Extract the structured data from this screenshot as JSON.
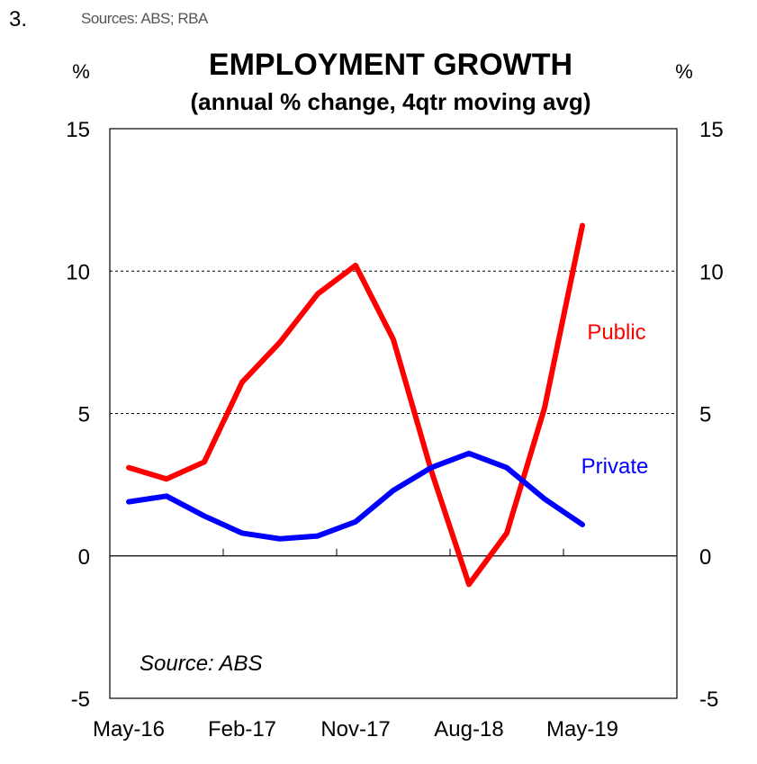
{
  "figure": {
    "number": "3.",
    "sources_note": "Sources:  ABS; RBA"
  },
  "chart_data": {
    "type": "line",
    "title": "EMPLOYMENT GROWTH",
    "subtitle": "(annual % change, 4qtr moving avg)",
    "left_unit": "%",
    "right_unit": "%",
    "ylim": [
      -5,
      15
    ],
    "yticks": [
      -5,
      0,
      5,
      10,
      15
    ],
    "ytick_labels": [
      "-5",
      "0",
      "5",
      "10",
      "15"
    ],
    "gridlines": [
      5,
      10
    ],
    "x": [
      "May-16",
      "Aug-16",
      "Nov-16",
      "Feb-17",
      "May-17",
      "Aug-17",
      "Nov-17",
      "Feb-18",
      "May-18",
      "Aug-18",
      "Nov-18",
      "Feb-19",
      "May-19"
    ],
    "x_tick_labels": [
      "May-16",
      "Feb-17",
      "Nov-17",
      "Aug-18",
      "May-19"
    ],
    "series": [
      {
        "name": "Public",
        "color": "#ff0000",
        "values": [
          3.1,
          2.7,
          3.3,
          6.1,
          7.5,
          9.2,
          10.2,
          7.6,
          3.0,
          -1.0,
          0.8,
          5.2,
          11.6
        ]
      },
      {
        "name": "Private",
        "color": "#0000ff",
        "values": [
          1.9,
          2.1,
          1.4,
          0.8,
          0.6,
          0.7,
          1.2,
          2.3,
          3.1,
          3.6,
          3.1,
          2.0,
          1.1
        ]
      }
    ],
    "annotation": "Source: ABS"
  }
}
